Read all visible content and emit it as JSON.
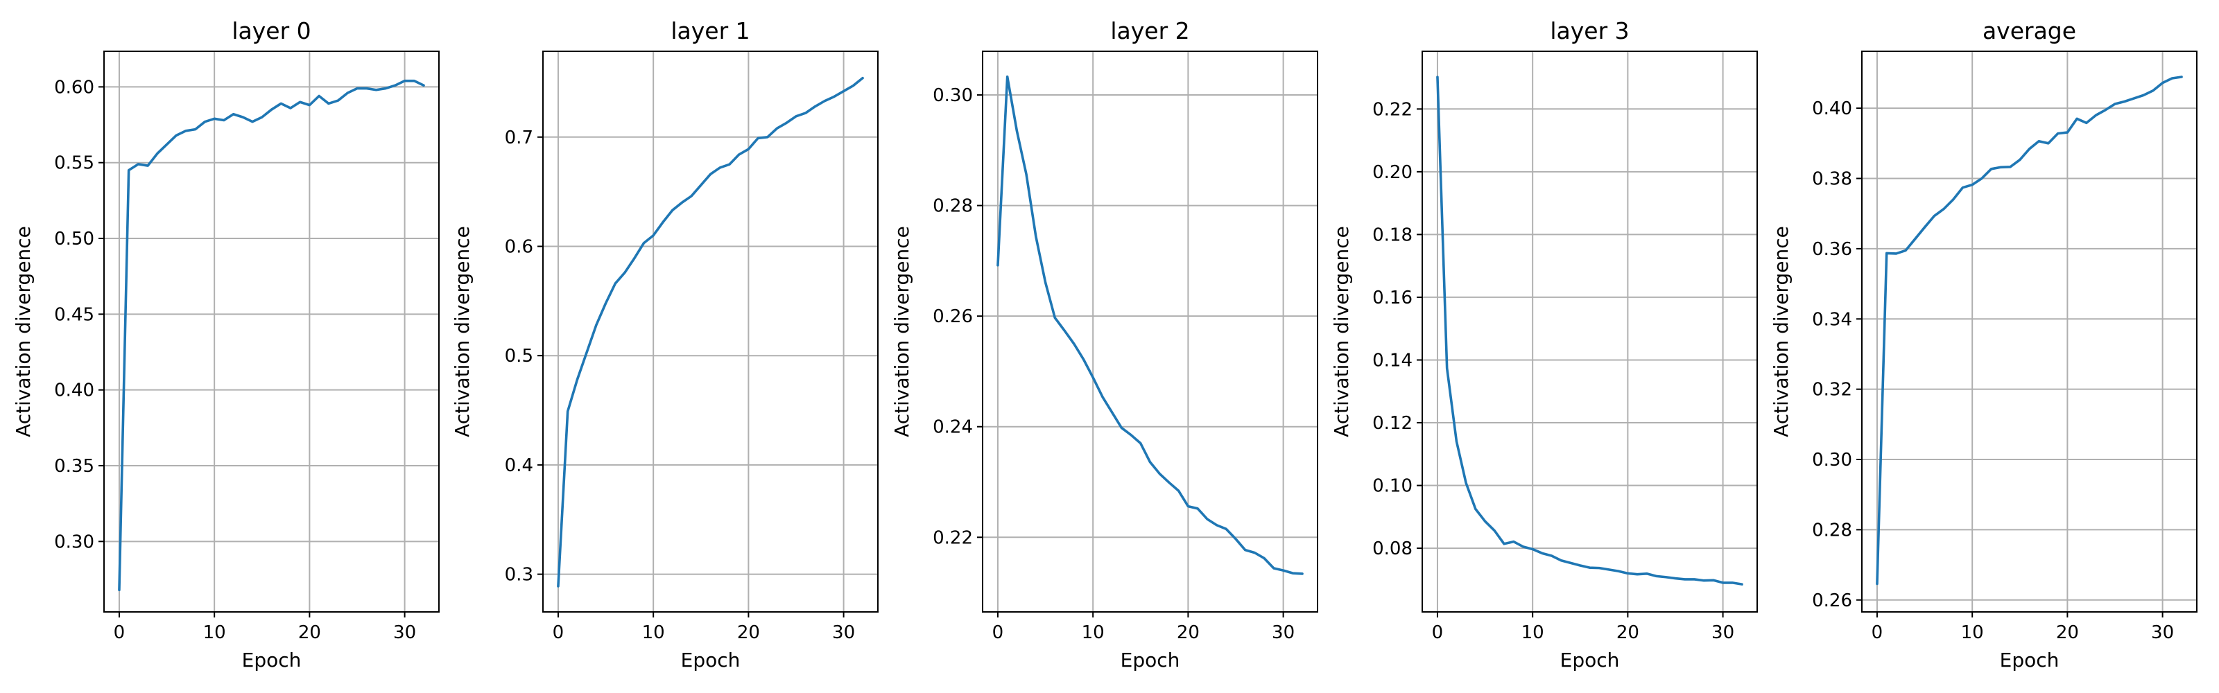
{
  "colors": {
    "series": "#1f77b4",
    "grid": "#b0b0b0",
    "axes": "#000000"
  },
  "chart_data": [
    {
      "type": "line",
      "title": "layer 0",
      "xlabel": "Epoch",
      "ylabel": "Activation divergence",
      "grid": true,
      "xlim": [
        -1.6,
        33.6
      ],
      "ylim": [
        0.2535,
        0.6235
      ],
      "xticks": [
        0,
        10,
        20,
        30
      ],
      "yticks": [
        0.3,
        0.35,
        0.4,
        0.45,
        0.5,
        0.55,
        0.6
      ],
      "ytick_decimals": 2,
      "x": [
        0,
        1,
        2,
        3,
        4,
        5,
        6,
        7,
        8,
        9,
        10,
        11,
        12,
        13,
        14,
        15,
        16,
        17,
        18,
        19,
        20,
        21,
        22,
        23,
        24,
        25,
        26,
        27,
        28,
        29,
        30,
        31,
        32
      ],
      "series": [
        {
          "values": [
            0.268,
            0.545,
            0.549,
            0.548,
            0.556,
            0.562,
            0.568,
            0.571,
            0.572,
            0.577,
            0.579,
            0.578,
            0.582,
            0.58,
            0.577,
            0.58,
            0.585,
            0.589,
            0.586,
            0.59,
            0.588,
            0.594,
            0.589,
            0.591,
            0.596,
            0.599,
            0.599,
            0.598,
            0.599,
            0.601,
            0.604,
            0.604,
            0.601
          ]
        }
      ]
    },
    {
      "type": "line",
      "title": "layer 1",
      "xlabel": "Epoch",
      "ylabel": "Activation divergence",
      "grid": true,
      "xlim": [
        -1.6,
        33.6
      ],
      "ylim": [
        0.2655,
        0.7785
      ],
      "xticks": [
        0,
        10,
        20,
        30
      ],
      "yticks": [
        0.3,
        0.4,
        0.5,
        0.6,
        0.7
      ],
      "ytick_decimals": 1,
      "x": [
        0,
        1,
        2,
        3,
        4,
        5,
        6,
        7,
        8,
        9,
        10,
        11,
        12,
        13,
        14,
        15,
        16,
        17,
        18,
        19,
        20,
        21,
        22,
        23,
        24,
        25,
        26,
        27,
        28,
        29,
        30,
        31,
        32
      ],
      "series": [
        {
          "values": [
            0.289,
            0.449,
            0.478,
            0.503,
            0.528,
            0.548,
            0.566,
            0.576,
            0.589,
            0.603,
            0.61,
            0.622,
            0.633,
            0.64,
            0.646,
            0.656,
            0.666,
            0.672,
            0.675,
            0.684,
            0.689,
            0.699,
            0.7,
            0.708,
            0.713,
            0.719,
            0.722,
            0.728,
            0.733,
            0.737,
            0.742,
            0.747,
            0.754
          ]
        }
      ]
    },
    {
      "type": "line",
      "title": "layer 2",
      "xlabel": "Epoch",
      "ylabel": "Activation divergence",
      "grid": true,
      "xlim": [
        -1.6,
        33.6
      ],
      "ylim": [
        0.2065,
        0.3079
      ],
      "xticks": [
        0,
        10,
        20,
        30
      ],
      "yticks": [
        0.22,
        0.24,
        0.26,
        0.28,
        0.3
      ],
      "ytick_decimals": 2,
      "x": [
        0,
        1,
        2,
        3,
        4,
        5,
        6,
        7,
        8,
        9,
        10,
        11,
        12,
        13,
        14,
        15,
        16,
        17,
        18,
        19,
        20,
        21,
        22,
        23,
        24,
        25,
        26,
        27,
        28,
        29,
        30,
        31,
        32
      ],
      "series": [
        {
          "values": [
            0.2692,
            0.3033,
            0.2935,
            0.2856,
            0.2744,
            0.2661,
            0.2597,
            0.2574,
            0.255,
            0.2522,
            0.2489,
            0.2454,
            0.2426,
            0.2398,
            0.2385,
            0.237,
            0.2336,
            0.2315,
            0.2299,
            0.2284,
            0.2256,
            0.2252,
            0.2233,
            0.2222,
            0.2215,
            0.2197,
            0.2177,
            0.2172,
            0.2162,
            0.2144,
            0.214,
            0.2135,
            0.2134
          ]
        }
      ]
    },
    {
      "type": "line",
      "title": "layer 3",
      "xlabel": "Epoch",
      "ylabel": "Activation divergence",
      "grid": true,
      "xlim": [
        -1.6,
        33.6
      ],
      "ylim": [
        0.0597,
        0.2384
      ],
      "xticks": [
        0,
        10,
        20,
        30
      ],
      "yticks": [
        0.08,
        0.1,
        0.12,
        0.14,
        0.16,
        0.18,
        0.2,
        0.22
      ],
      "ytick_decimals": 2,
      "x": [
        0,
        1,
        2,
        3,
        4,
        5,
        6,
        7,
        8,
        9,
        10,
        11,
        12,
        13,
        14,
        15,
        16,
        17,
        18,
        19,
        20,
        21,
        22,
        23,
        24,
        25,
        26,
        27,
        28,
        29,
        30,
        31,
        32
      ],
      "series": [
        {
          "values": [
            0.2302,
            0.1374,
            0.1141,
            0.1008,
            0.0925,
            0.0886,
            0.0856,
            0.0814,
            0.0821,
            0.0805,
            0.0797,
            0.0784,
            0.0776,
            0.0761,
            0.0753,
            0.0745,
            0.0738,
            0.0737,
            0.0732,
            0.0727,
            0.072,
            0.0717,
            0.0719,
            0.0711,
            0.0708,
            0.0704,
            0.0701,
            0.0701,
            0.0697,
            0.0698,
            0.069,
            0.069,
            0.0685
          ]
        }
      ]
    },
    {
      "type": "line",
      "title": "average",
      "xlabel": "Epoch",
      "ylabel": "Activation divergence",
      "grid": true,
      "xlim": [
        -1.6,
        33.6
      ],
      "ylim": [
        0.2566,
        0.4162
      ],
      "xticks": [
        0,
        10,
        20,
        30
      ],
      "yticks": [
        0.26,
        0.28,
        0.3,
        0.32,
        0.34,
        0.36,
        0.38,
        0.4
      ],
      "ytick_decimals": 2,
      "x": [
        0,
        1,
        2,
        3,
        4,
        5,
        6,
        7,
        8,
        9,
        10,
        11,
        12,
        13,
        14,
        15,
        16,
        17,
        18,
        19,
        20,
        21,
        22,
        23,
        24,
        25,
        26,
        27,
        28,
        29,
        30,
        31,
        32
      ],
      "series": [
        {
          "values": [
            0.2646,
            0.3587,
            0.3586,
            0.3595,
            0.3628,
            0.3661,
            0.3693,
            0.3713,
            0.374,
            0.3774,
            0.3782,
            0.38,
            0.3827,
            0.3832,
            0.3833,
            0.3853,
            0.3884,
            0.3906,
            0.39,
            0.3928,
            0.3931,
            0.397,
            0.3958,
            0.398,
            0.3995,
            0.4012,
            0.4019,
            0.4028,
            0.4037,
            0.405,
            0.4072,
            0.4085,
            0.4089
          ]
        }
      ]
    }
  ]
}
